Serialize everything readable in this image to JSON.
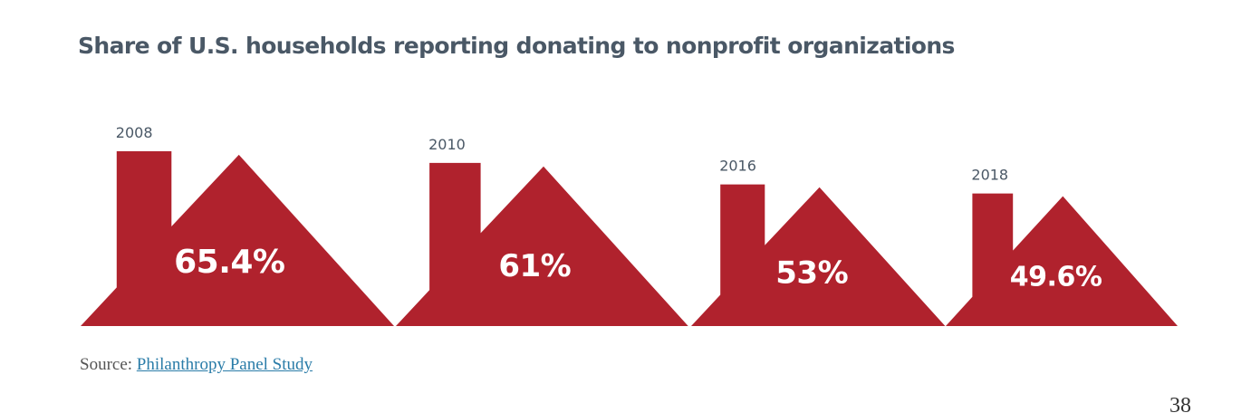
{
  "title": "Share of U.S. households reporting donating to nonprofit organizations",
  "source": {
    "prefix": "Source:",
    "link_text": "Philanthropy Panel Study"
  },
  "page_number": "38",
  "colors": {
    "house": "#b0222d",
    "title": "#4a5866",
    "link": "#2a7ca8"
  },
  "chart_data": {
    "type": "bar",
    "title": "Share of U.S. households reporting donating to nonprofit organizations",
    "categories": [
      "2008",
      "2010",
      "2016",
      "2018"
    ],
    "values": [
      65.4,
      61,
      53,
      49.6
    ],
    "value_labels": [
      "65.4%",
      "61%",
      "53%",
      "49.6%"
    ],
    "unit": "%",
    "ylim": [
      0,
      70
    ],
    "grid": false,
    "legend": "none"
  }
}
